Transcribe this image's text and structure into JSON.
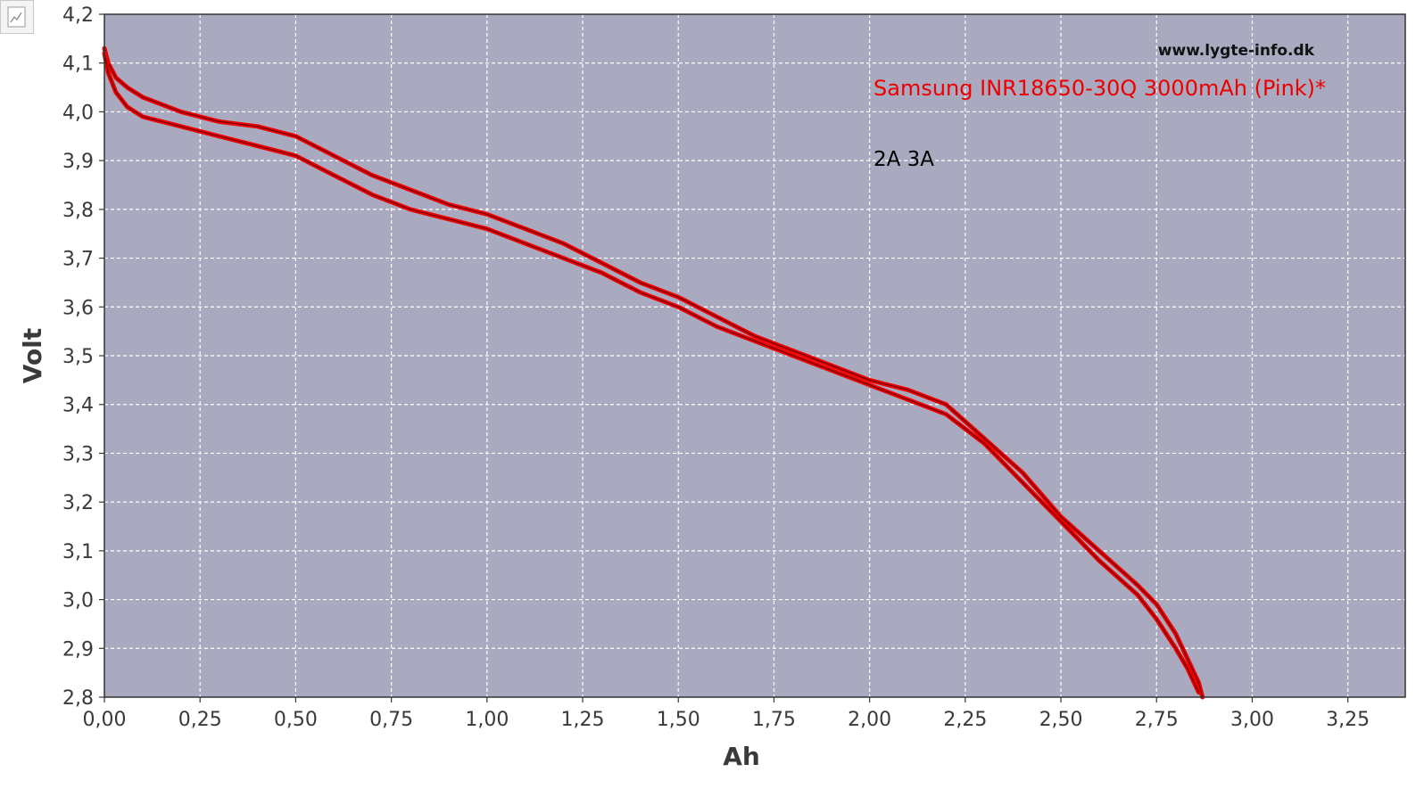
{
  "chart_data": {
    "type": "line",
    "watermark": "www.lygte-info.dk",
    "title": "Samsung INR18650-30Q 3000mAh (Pink)*",
    "subtitle": "2A 3A",
    "xlabel": "Ah",
    "ylabel": "Volt",
    "xlim": [
      0,
      3.4
    ],
    "ylim": [
      2.8,
      4.2
    ],
    "x_ticks": [
      "0,00",
      "0,25",
      "0,50",
      "0,75",
      "1,00",
      "1,25",
      "1,50",
      "1,75",
      "2,00",
      "2,25",
      "2,50",
      "2,75",
      "3,00",
      "3,25"
    ],
    "y_ticks": [
      "2,8",
      "2,9",
      "3,0",
      "3,1",
      "3,2",
      "3,3",
      "3,4",
      "3,5",
      "3,6",
      "3,7",
      "3,8",
      "3,9",
      "4,0",
      "4,1",
      "4,2"
    ],
    "grid": true,
    "colors": {
      "plot_background": "#a9aabf",
      "series": "#ee0000",
      "series_core": "#6a0000",
      "title": "#ee0000",
      "grid": "#ffffff",
      "axis": "#333333"
    },
    "series": [
      {
        "x": [
          0.0,
          0.01,
          0.03,
          0.06,
          0.1,
          0.2,
          0.3,
          0.4,
          0.5,
          0.6,
          0.7,
          0.8,
          0.9,
          1.0,
          1.1,
          1.2,
          1.3,
          1.4,
          1.5,
          1.6,
          1.7,
          1.8,
          1.9,
          2.0,
          2.1,
          2.2,
          2.3,
          2.4,
          2.5,
          2.6,
          2.7,
          2.75,
          2.8,
          2.83,
          2.86,
          2.87
        ],
        "values": [
          4.13,
          4.1,
          4.07,
          4.05,
          4.03,
          4.0,
          3.98,
          3.97,
          3.95,
          3.91,
          3.87,
          3.84,
          3.81,
          3.79,
          3.76,
          3.73,
          3.69,
          3.65,
          3.62,
          3.58,
          3.54,
          3.51,
          3.48,
          3.45,
          3.43,
          3.4,
          3.33,
          3.26,
          3.17,
          3.1,
          3.03,
          2.99,
          2.93,
          2.88,
          2.83,
          2.8
        ]
      },
      {
        "x": [
          0.0,
          0.01,
          0.03,
          0.06,
          0.1,
          0.2,
          0.3,
          0.4,
          0.5,
          0.6,
          0.7,
          0.8,
          0.9,
          1.0,
          1.1,
          1.2,
          1.3,
          1.4,
          1.5,
          1.6,
          1.7,
          1.8,
          1.9,
          2.0,
          2.1,
          2.2,
          2.3,
          2.4,
          2.5,
          2.6,
          2.7,
          2.75,
          2.8,
          2.83,
          2.86
        ],
        "values": [
          4.12,
          4.08,
          4.04,
          4.01,
          3.99,
          3.97,
          3.95,
          3.93,
          3.91,
          3.87,
          3.83,
          3.8,
          3.78,
          3.76,
          3.73,
          3.7,
          3.67,
          3.63,
          3.6,
          3.56,
          3.53,
          3.5,
          3.47,
          3.44,
          3.41,
          3.38,
          3.32,
          3.24,
          3.16,
          3.08,
          3.01,
          2.96,
          2.9,
          2.86,
          2.81
        ]
      }
    ]
  }
}
